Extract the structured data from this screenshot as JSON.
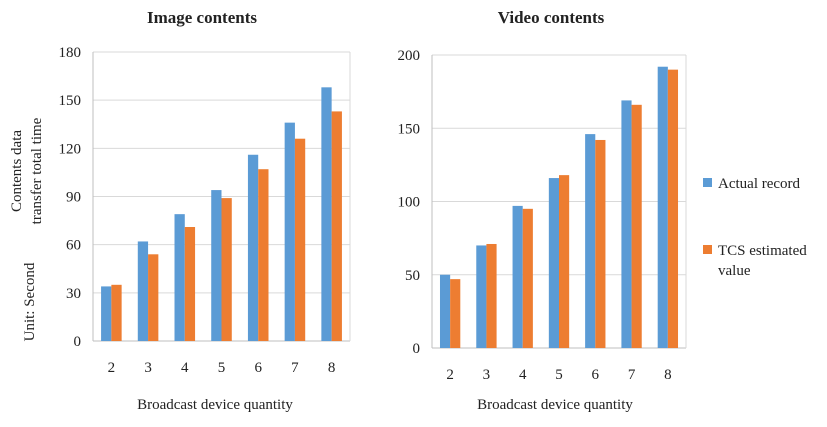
{
  "colors": {
    "actual": "#5B9BD5",
    "estimated": "#ED7D31",
    "grid": "#d9d9d9",
    "axis": "#bfbfbf"
  },
  "y_axis_label": {
    "line1": "Contents data",
    "line2": "transfer total time",
    "unit": "Unit: Second"
  },
  "legend": {
    "actual": "Actual record",
    "estimated_line1": "TCS estimated",
    "estimated_line2": "value",
    "placement": "right"
  },
  "chart_data": [
    {
      "type": "bar",
      "title": "Image contents",
      "xlabel": "Broadcast device quantity",
      "ylabel": "Contents data transfer total time",
      "categories": [
        "2",
        "3",
        "4",
        "5",
        "6",
        "7",
        "8"
      ],
      "ylim": [
        0,
        180
      ],
      "yticks": [
        "0",
        "30",
        "60",
        "90",
        "120",
        "150",
        "180"
      ],
      "grid": true,
      "series": [
        {
          "name": "Actual record",
          "values": [
            34,
            62,
            79,
            94,
            116,
            136,
            158
          ]
        },
        {
          "name": "TCS estimated value",
          "values": [
            35,
            54,
            71,
            89,
            107,
            126,
            143
          ]
        }
      ]
    },
    {
      "type": "bar",
      "title": "Video contents",
      "xlabel": "Broadcast device quantity",
      "ylabel": "",
      "categories": [
        "2",
        "3",
        "4",
        "5",
        "6",
        "7",
        "8"
      ],
      "ylim": [
        0,
        200
      ],
      "yticks": [
        "0",
        "50",
        "100",
        "150",
        "200"
      ],
      "grid": true,
      "series": [
        {
          "name": "Actual record",
          "values": [
            50,
            70,
            97,
            116,
            146,
            169,
            192
          ]
        },
        {
          "name": "TCS estimated value",
          "values": [
            47,
            71,
            95,
            118,
            142,
            166,
            190
          ]
        }
      ]
    }
  ]
}
